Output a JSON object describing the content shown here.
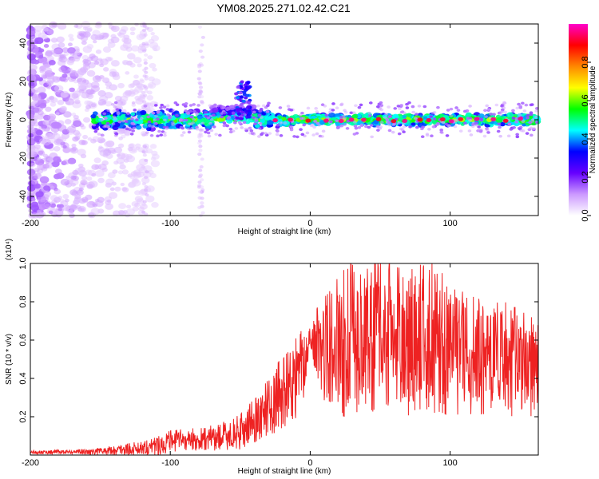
{
  "title": "YM08.2025.271.02.42.C21",
  "colors": {
    "snr_line": "#ee2222",
    "background": "#ffffff",
    "colormap": [
      "#ffffff",
      "#cc99ff",
      "#6600ff",
      "#0000ff",
      "#00ffff",
      "#00ff00",
      "#ffff00",
      "#ff8800",
      "#ff0000",
      "#ff00cc"
    ]
  },
  "chart_data": [
    {
      "type": "heatmap",
      "name": "spectrogram",
      "xlabel": "Height of straight line (km)",
      "ylabel": "Frequency (Hz)",
      "xlim": [
        -200,
        163
      ],
      "ylim": [
        -50,
        50
      ],
      "xticks": [
        -200,
        -100,
        0,
        100
      ],
      "xtick_labels": [
        "-200",
        "-100",
        "0",
        "100"
      ],
      "yticks": [
        -40,
        -20,
        0,
        20,
        40
      ],
      "ytick_labels": [
        "-40",
        "-20",
        "0",
        "20",
        "40"
      ],
      "colorbar": {
        "label": "Normalized spectral amplitude",
        "range": [
          0.0,
          1.0
        ],
        "ticks": [
          0.0,
          0.2,
          0.4,
          0.6,
          0.8
        ],
        "tick_labels": [
          "0.0",
          "0.2",
          "0.4",
          "0.6",
          "0.8"
        ]
      },
      "features": {
        "broadband_noise_x_range": [
          -200,
          -120
        ],
        "signal_band_center_hz": 0,
        "signal_band_x_range": [
          -155,
          163
        ],
        "bump": {
          "x": -48,
          "peak_hz": 20
        }
      }
    },
    {
      "type": "line",
      "name": "snr",
      "xlabel": "Height of straight line (km)",
      "ylabel": "SNR (10 * v/v)",
      "yscale_label": "(x10⁴)",
      "xlim": [
        -200,
        163
      ],
      "ylim": [
        0,
        1.0
      ],
      "xticks": [
        -200,
        -100,
        0,
        100
      ],
      "xtick_labels": [
        "-200",
        "-100",
        "0",
        "100"
      ],
      "yticks": [
        0.2,
        0.4,
        0.6,
        0.8,
        1.0
      ],
      "ytick_labels": [
        "0.2",
        "0.4",
        "0.6",
        "0.8",
        "1.0"
      ],
      "series": [
        {
          "name": "SNR",
          "x": [
            -200,
            -190,
            -180,
            -170,
            -160,
            -150,
            -140,
            -130,
            -120,
            -110,
            -100,
            -90,
            -80,
            -70,
            -60,
            -50,
            -40,
            -30,
            -20,
            -15,
            -10,
            -5,
            -2,
            0,
            5,
            10,
            15,
            20,
            25,
            30,
            40,
            50,
            60,
            70,
            80,
            90,
            100,
            110,
            120,
            130,
            140,
            150,
            160,
            163
          ],
          "values": [
            0.015,
            0.015,
            0.016,
            0.017,
            0.018,
            0.02,
            0.025,
            0.03,
            0.04,
            0.05,
            0.07,
            0.08,
            0.08,
            0.09,
            0.1,
            0.12,
            0.18,
            0.25,
            0.32,
            0.36,
            0.4,
            0.48,
            0.55,
            0.62,
            0.58,
            0.55,
            0.6,
            0.55,
            0.6,
            0.62,
            0.6,
            0.65,
            0.62,
            0.58,
            0.62,
            0.6,
            0.55,
            0.55,
            0.52,
            0.5,
            0.5,
            0.48,
            0.45,
            0.45
          ],
          "amplitude": [
            0.01,
            0.01,
            0.012,
            0.012,
            0.015,
            0.02,
            0.025,
            0.03,
            0.04,
            0.05,
            0.06,
            0.06,
            0.06,
            0.07,
            0.08,
            0.09,
            0.12,
            0.15,
            0.2,
            0.22,
            0.22,
            0.2,
            0.1,
            0.05,
            0.2,
            0.3,
            0.35,
            0.38,
            0.4,
            0.4,
            0.4,
            0.42,
            0.4,
            0.38,
            0.4,
            0.4,
            0.35,
            0.35,
            0.32,
            0.3,
            0.3,
            0.28,
            0.26,
            0.26
          ]
        }
      ]
    }
  ]
}
